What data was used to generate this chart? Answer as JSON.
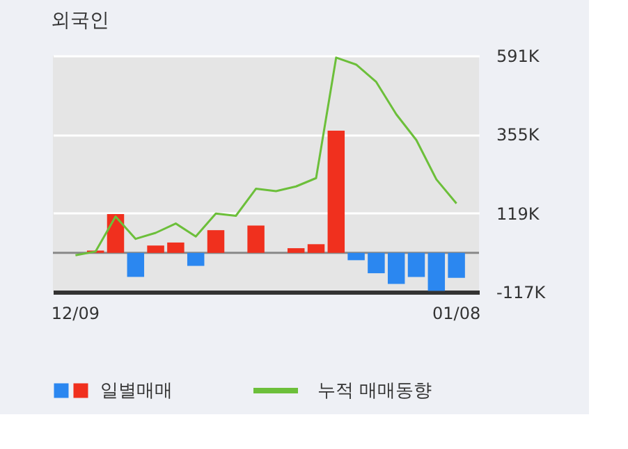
{
  "chart_data": {
    "type": "bar",
    "title": "외국인",
    "categories": [
      "12/09",
      null,
      null,
      null,
      null,
      null,
      null,
      null,
      null,
      null,
      null,
      null,
      null,
      null,
      null,
      null,
      null,
      null,
      null,
      "01/08"
    ],
    "series": [
      {
        "name": "일별매매",
        "values": [
          null,
          7,
          116,
          -72,
          22,
          31,
          -39,
          68,
          0,
          82,
          0,
          14,
          26,
          366,
          -22,
          -61,
          -93,
          -72,
          -114,
          -75
        ],
        "colors": [
          "#2b87f0",
          "#f0301e",
          "#f0301e",
          "#2b87f0",
          "#f0301e",
          "#f0301e",
          "#2b87f0",
          "#f0301e",
          "#f0301e",
          "#f0301e",
          "#f0301e",
          "#f0301e",
          "#f0301e",
          "#f0301e",
          "#2b87f0",
          "#2b87f0",
          "#2b87f0",
          "#2b87f0",
          "#2b87f0",
          "#2b87f0"
        ]
      },
      {
        "name": "누적 매매동향",
        "type": "line",
        "color": "#6cbf3a",
        "values": [
          -7,
          4,
          109,
          42,
          60,
          88,
          49,
          118,
          111,
          192,
          185,
          199,
          224,
          585,
          564,
          512,
          415,
          338,
          220,
          148
        ]
      }
    ],
    "ylim": [
      -117,
      591
    ],
    "yticks": [
      {
        "value": 591,
        "label": "591K"
      },
      {
        "value": 355,
        "label": "355K"
      },
      {
        "value": 119,
        "label": "119K"
      },
      {
        "value": -117,
        "label": "-117K"
      }
    ],
    "ref_lines": [
      {
        "axis": "y",
        "value": 0,
        "color": "#888888"
      }
    ],
    "grid": "y",
    "legend": "bottom"
  }
}
